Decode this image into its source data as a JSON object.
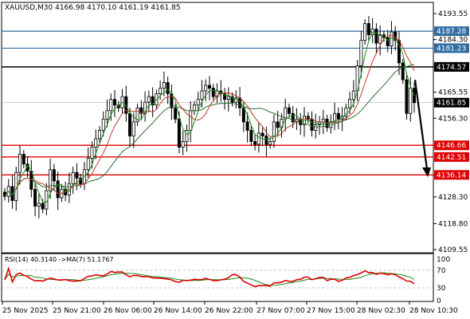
{
  "header": {
    "symbol_timeframe": "XAUUSD,M30",
    "ohlc": "4166.98 4170.10 4161.19 4161.85"
  },
  "rsi_panel": {
    "label": "RSI(14) 40.3140  ->MA(7) 51.1767"
  },
  "price_axis": {
    "ticks": [
      "4193.55",
      "4184.30",
      "4174.57",
      "4165.55",
      "4156.30",
      "4146.66",
      "4136.14",
      "4128.30",
      "4118.80",
      "4109.55"
    ],
    "tick_values": [
      4193.55,
      4184.3,
      4174.57,
      4165.55,
      4156.3,
      4146.66,
      4136.14,
      4128.3,
      4118.8,
      4109.55
    ]
  },
  "rsi_axis": {
    "ticks": [
      "100",
      "70",
      "30",
      "0"
    ]
  },
  "time_axis": {
    "labels": [
      "25 Nov 2025",
      "25 Nov 21:00",
      "26 Nov 06:00",
      "26 Nov 14:00",
      "26 Nov 22:00",
      "27 Nov 07:00",
      "27 Nov 15:00",
      "28 Nov 02:30",
      "28 Nov 10:30"
    ]
  },
  "levels": [
    {
      "name": "resistance-blue-1",
      "value": 4187.28,
      "label": "4187.28",
      "color": "#2e6da4"
    },
    {
      "name": "resistance-blue-2",
      "value": 4181.23,
      "label": "4181.23",
      "color": "#2e6da4"
    },
    {
      "name": "pivot-black",
      "value": 4174.57,
      "label": "4174.57",
      "color": "#000000"
    },
    {
      "name": "support-red-1",
      "value": 4146.66,
      "label": "4146.66",
      "color": "#e00000"
    },
    {
      "name": "support-red-2",
      "value": 4142.51,
      "label": "4142.51",
      "color": "#e00000"
    },
    {
      "name": "support-red-3",
      "value": 4136.14,
      "label": "4136.14",
      "color": "#e00000"
    }
  ],
  "current_price": {
    "value": 4161.85,
    "label": "4161.85"
  },
  "colors": {
    "candle": "#000000",
    "ma_fast": "#1a8c1a",
    "ma_mid": "#c0392b",
    "ma_slow": "#2d6e2d",
    "rsi_line": "#e00000",
    "rsi_ma": "#1a8c1a"
  },
  "chart_data": {
    "type": "candlestick",
    "symbol": "XAUUSD",
    "timeframe": "M30",
    "closes": [
      4128.5,
      4132.0,
      4127.0,
      4137.0,
      4143.5,
      4140.0,
      4137.5,
      4131.0,
      4125.0,
      4126.0,
      4124.0,
      4130.5,
      4138.0,
      4134.0,
      4128.0,
      4131.0,
      4129.0,
      4133.0,
      4137.0,
      4135.0,
      4133.0,
      4138.0,
      4142.0,
      4146.0,
      4149.0,
      4152.0,
      4156.0,
      4159.0,
      4163.0,
      4161.0,
      4160.0,
      4164.0,
      4158.0,
      4150.0,
      4155.0,
      4160.0,
      4158.0,
      4162.0,
      4164.0,
      4161.0,
      4165.0,
      4167.0,
      4169.0,
      4165.0,
      4160.0,
      4156.0,
      4146.0,
      4148.0,
      4152.0,
      4159.0,
      4161.0,
      4163.0,
      4166.0,
      4168.0,
      4167.0,
      4164.0,
      4166.0,
      4165.0,
      4163.0,
      4164.0,
      4162.0,
      4163.5,
      4160.0,
      4155.0,
      4152.0,
      4148.0,
      4147.0,
      4151.0,
      4150.0,
      4147.0,
      4148.0,
      4155.0,
      4153.0,
      4156.0,
      4160.0,
      4158.0,
      4155.0,
      4156.0,
      4154.0,
      4157.0,
      4156.0,
      4152.0,
      4154.0,
      4155.0,
      4156.0,
      4153.0,
      4155.0,
      4158.0,
      4156.0,
      4157.0,
      4160.0,
      4163.0,
      4166.0,
      4175.0,
      4184.0,
      4190.0,
      4186.0,
      4188.0,
      4183.0,
      4186.0,
      4185.0,
      4182.0,
      4187.0,
      4184.0,
      4176.0,
      4170.0,
      4158.0,
      4166.98,
      4161.85
    ],
    "rsi_last": 40.314,
    "rsi_ma_last": 51.1767,
    "levels": [
      4187.28,
      4181.23,
      4174.57,
      4146.66,
      4142.51,
      4136.14
    ]
  }
}
